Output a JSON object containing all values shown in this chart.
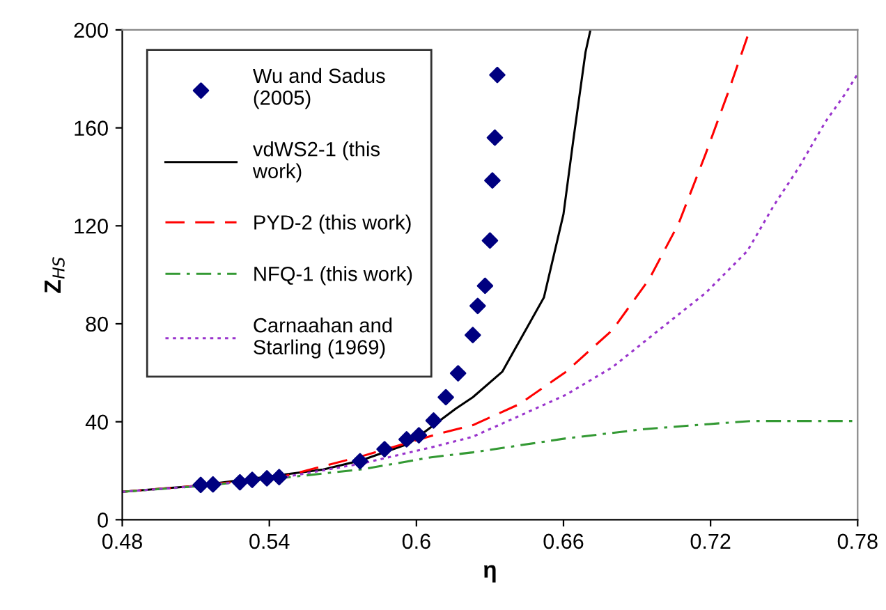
{
  "chart_data": {
    "type": "line",
    "xlabel": "η",
    "ylabel": "Z$_{HS}$",
    "xlim": [
      0.48,
      0.78
    ],
    "xticks": [
      0.48,
      0.54,
      0.6,
      0.66,
      0.72,
      0.78
    ],
    "ylim": [
      0,
      200
    ],
    "yticks": [
      0,
      40,
      80,
      120,
      160,
      200
    ],
    "grid": false,
    "legend": "top left",
    "series": [
      {
        "name": "Wu and Sadus\n(2005)",
        "type": "scatter",
        "marker": "diamond",
        "color": "#000080",
        "x": [
          0.512,
          0.517,
          0.528,
          0.533,
          0.539,
          0.544,
          0.577,
          0.587,
          0.596,
          0.601,
          0.607,
          0.612,
          0.617,
          0.623,
          0.625,
          0.628,
          0.63,
          0.631,
          0.632,
          0.633
        ],
        "values": [
          14.2,
          14.4,
          15.3,
          16.3,
          16.9,
          17.4,
          23.9,
          28.8,
          32.8,
          34.5,
          40.5,
          50,
          59.8,
          75.4,
          87.3,
          95.5,
          114,
          138.5,
          156,
          181.6
        ]
      },
      {
        "name": "vdWS2-1 (this\nwork)",
        "line_style": "solid",
        "color": "#000000",
        "x": [
          0.48,
          0.51,
          0.562,
          0.578,
          0.597,
          0.616,
          0.623,
          0.635,
          0.652,
          0.66,
          0.664,
          0.669,
          0.671
        ],
        "values": [
          11.4,
          13.8,
          20.5,
          24.4,
          31.1,
          45.3,
          50,
          60.4,
          90.7,
          124.8,
          155,
          191,
          200
        ]
      },
      {
        "name": "PYD-2 (this work)",
        "line_style": "dashed",
        "color": "#ff0000",
        "x": [
          0.48,
          0.51,
          0.544,
          0.578,
          0.608,
          0.623,
          0.642,
          0.661,
          0.68,
          0.695,
          0.707,
          0.718,
          0.727,
          0.736
        ],
        "values": [
          11.4,
          13.8,
          17.2,
          26,
          34.8,
          38.6,
          47.2,
          60.4,
          77.5,
          98.3,
          121,
          149.4,
          174,
          200
        ]
      },
      {
        "name": "NFQ-1 (this work)",
        "line_style": "dashdot",
        "color": "#339933",
        "x": [
          0.48,
          0.51,
          0.544,
          0.578,
          0.606,
          0.623,
          0.661,
          0.693,
          0.724,
          0.737,
          0.78
        ],
        "values": [
          11.4,
          13.6,
          16.9,
          20.6,
          25.5,
          27.5,
          33.2,
          37,
          39.4,
          40.3,
          40.3
        ]
      },
      {
        "name": "Carnaahan and\nStarling (1969)",
        "line_style": "dotted",
        "color": "#9933cc",
        "x": [
          0.48,
          0.51,
          0.544,
          0.578,
          0.608,
          0.623,
          0.642,
          0.661,
          0.68,
          0.699,
          0.718,
          0.735,
          0.746,
          0.756,
          0.767,
          0.775,
          0.78
        ],
        "values": [
          11.4,
          13.7,
          17,
          23,
          30,
          33.9,
          42.4,
          51,
          62.3,
          77.5,
          92.6,
          109.7,
          128.6,
          143.8,
          162.7,
          174,
          182
        ]
      }
    ]
  }
}
